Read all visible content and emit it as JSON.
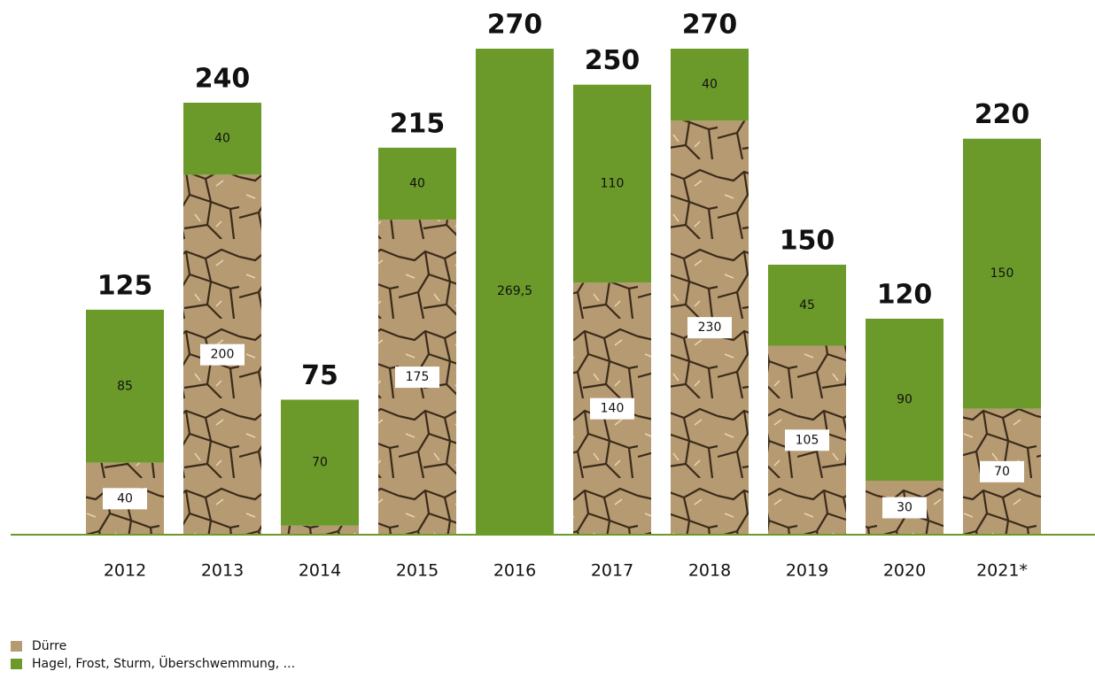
{
  "chart_data": {
    "type": "stacked-bar",
    "categories": [
      "2012",
      "2013",
      "2014",
      "2015",
      "2016",
      "2017",
      "2018",
      "2019",
      "2020",
      "2021*"
    ],
    "series": [
      {
        "name": "Dürre",
        "color": "#b59a72",
        "values": [
          40,
          200,
          5,
          175,
          0.5,
          140,
          230,
          105,
          30,
          70
        ],
        "value_labels": [
          "40",
          "200",
          "5",
          "175",
          "0,5",
          "140",
          "230",
          "105",
          "30",
          "70"
        ]
      },
      {
        "name": "Hagel, Frost, Sturm, Überschwemmung, ...",
        "color": "#6b9a2a",
        "values": [
          85,
          40,
          70,
          40,
          269.5,
          110,
          40,
          45,
          90,
          150
        ],
        "value_labels": [
          "85",
          "40",
          "70",
          "40",
          "269,5",
          "110",
          "40",
          "45",
          "90",
          "150"
        ]
      }
    ],
    "totals": [
      125,
      240,
      75,
      215,
      270,
      250,
      270,
      150,
      120,
      220
    ],
    "ylim": [
      0,
      270
    ]
  }
}
